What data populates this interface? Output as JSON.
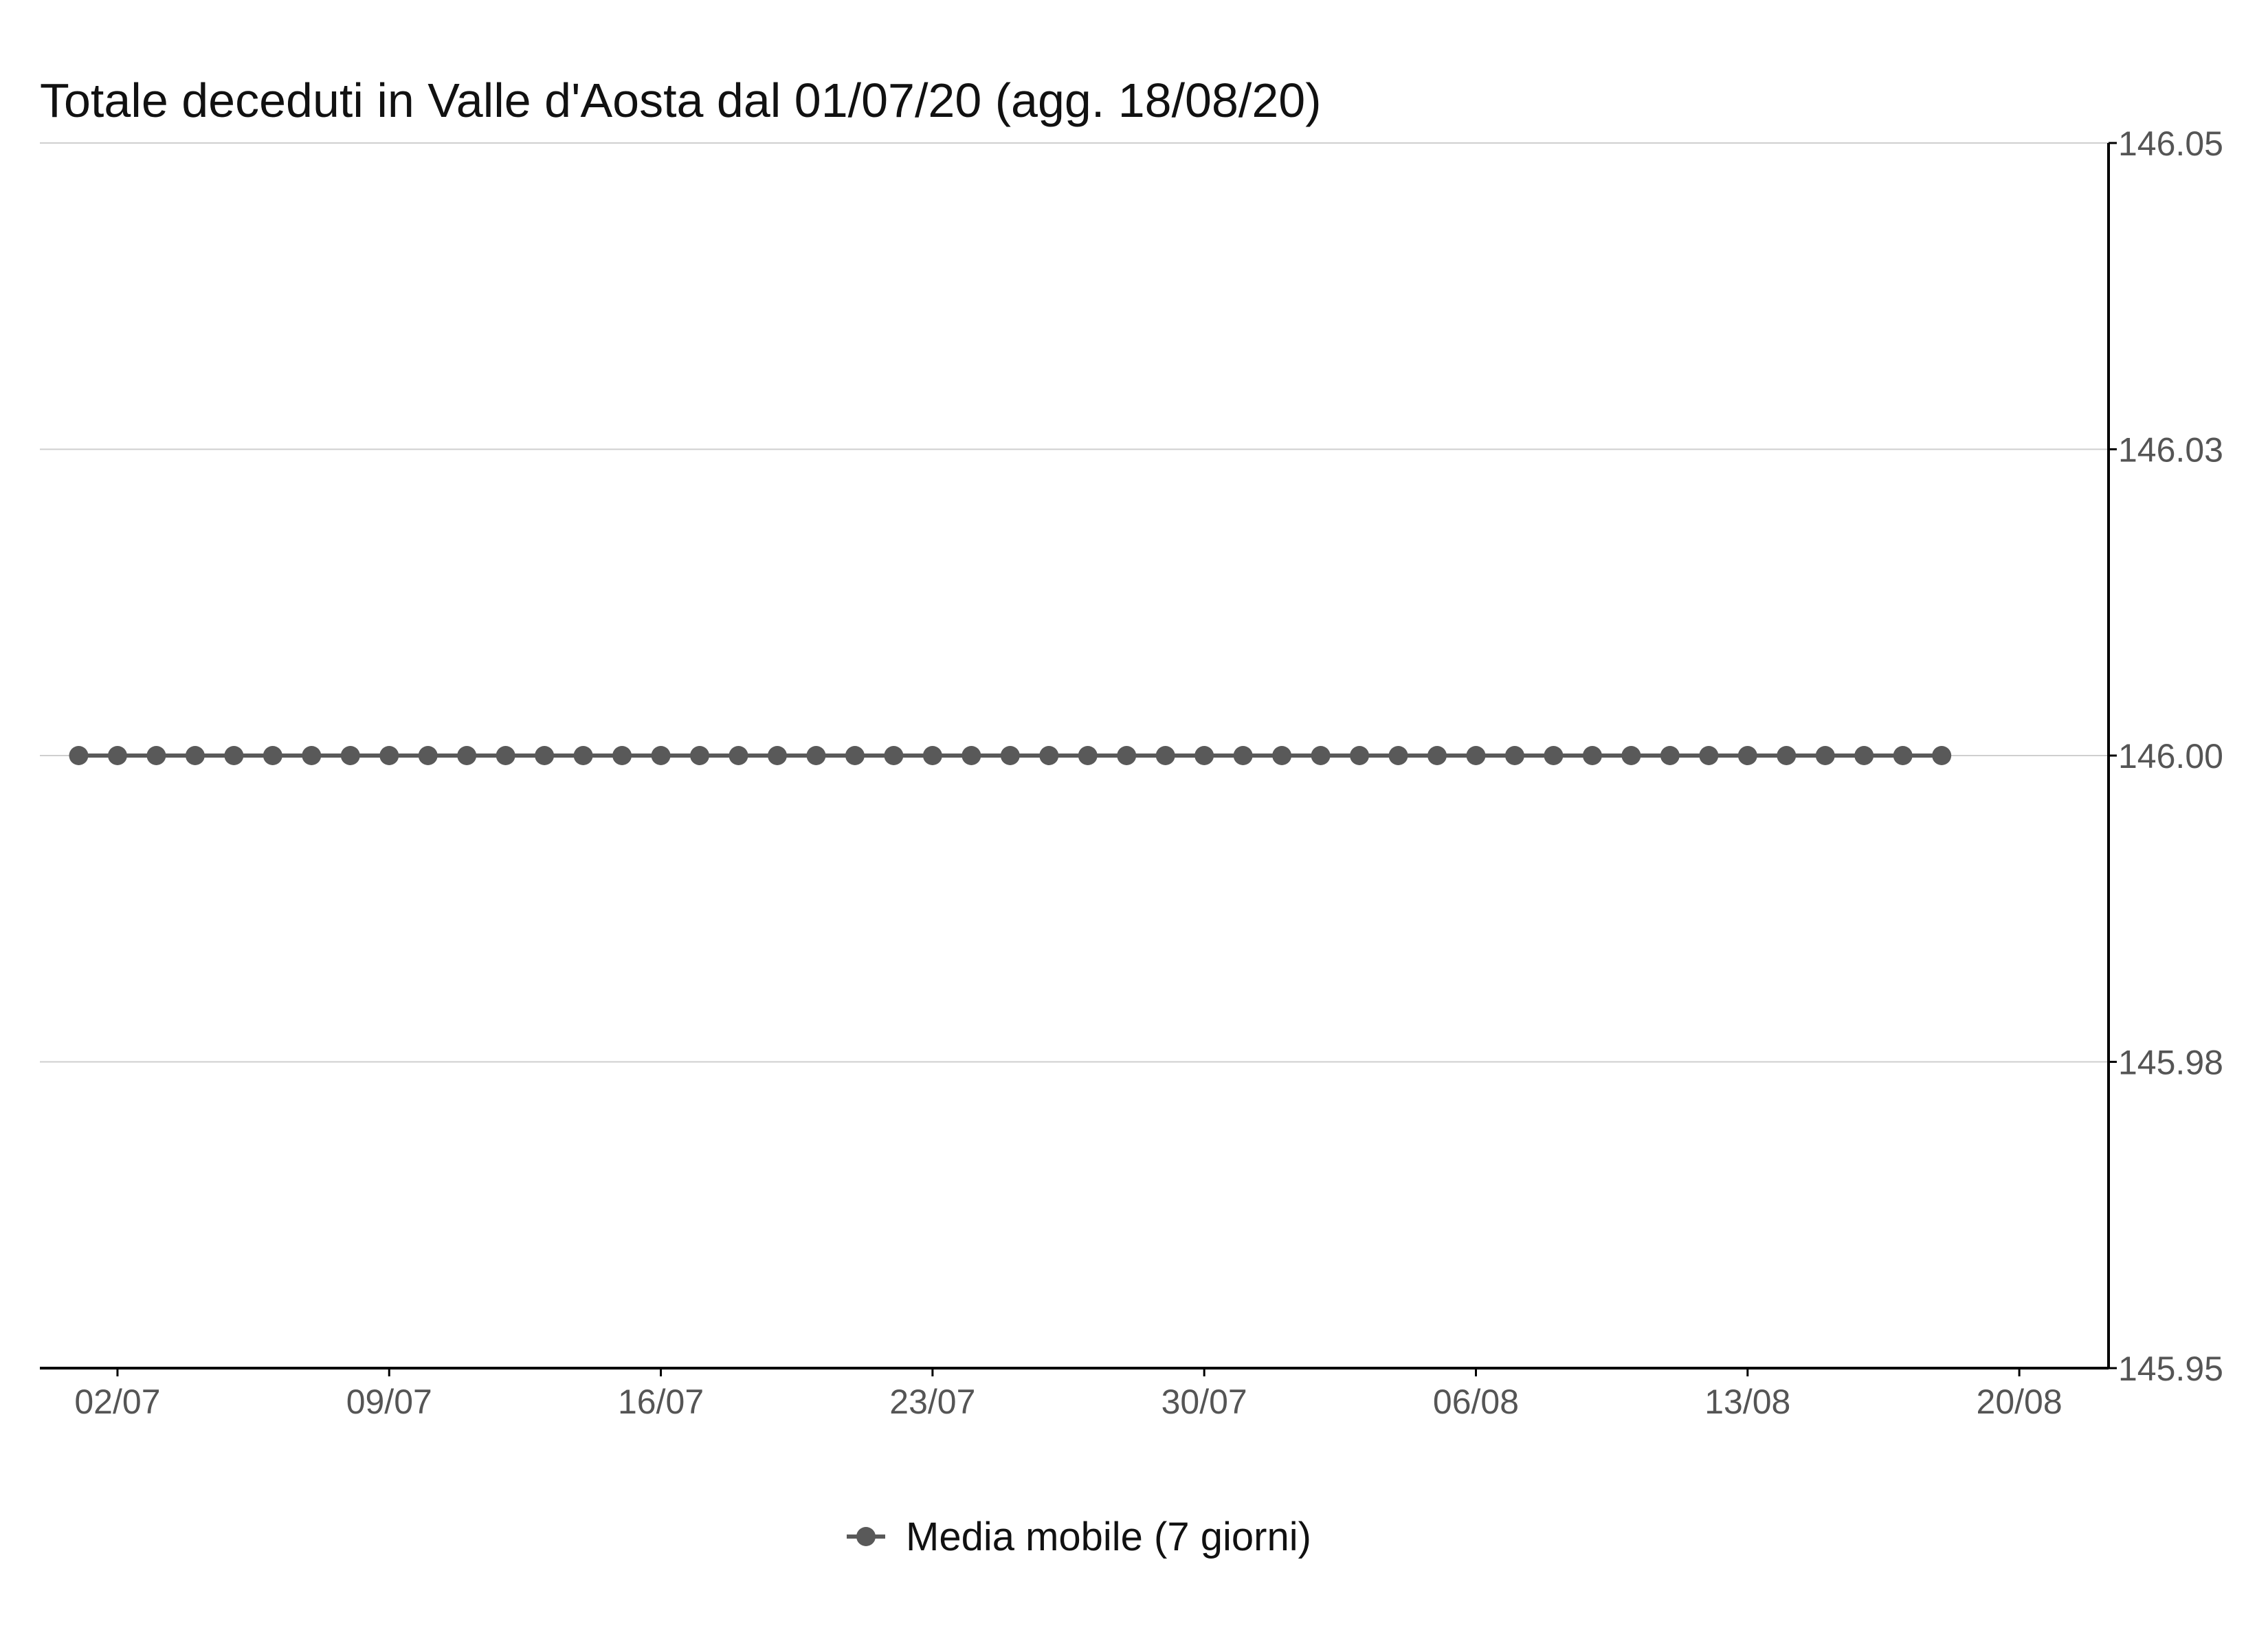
{
  "chart_data": {
    "type": "line",
    "title": "Totale deceduti in Valle d'Aosta dal 01/07/20 (agg. 18/08/20)",
    "xlabel": "",
    "ylabel": "",
    "y_axis_position": "right",
    "grid": true,
    "legend_position": "bottom",
    "ylim": [
      145.95,
      146.05
    ],
    "y_ticks": [
      {
        "value": 145.95,
        "label": "145.95"
      },
      {
        "value": 145.975,
        "label": "145.98"
      },
      {
        "value": 146.0,
        "label": "146.00"
      },
      {
        "value": 146.025,
        "label": "146.03"
      },
      {
        "value": 146.05,
        "label": "146.05"
      }
    ],
    "x_range_days": [
      -1.0,
      52.3
    ],
    "x_ticks": [
      {
        "day": 1,
        "label": "02/07"
      },
      {
        "day": 8,
        "label": "09/07"
      },
      {
        "day": 15,
        "label": "16/07"
      },
      {
        "day": 22,
        "label": "23/07"
      },
      {
        "day": 29,
        "label": "30/07"
      },
      {
        "day": 36,
        "label": "06/08"
      },
      {
        "day": 43,
        "label": "13/08"
      },
      {
        "day": 50,
        "label": "20/08"
      }
    ],
    "series": [
      {
        "name": "Media mobile (7 giorni)",
        "color": "#595959",
        "start_date": "01/07",
        "x": [
          0,
          1,
          2,
          3,
          4,
          5,
          6,
          7,
          8,
          9,
          10,
          11,
          12,
          13,
          14,
          15,
          16,
          17,
          18,
          19,
          20,
          21,
          22,
          23,
          24,
          25,
          26,
          27,
          28,
          29,
          30,
          31,
          32,
          33,
          34,
          35,
          36,
          37,
          38,
          39,
          40,
          41,
          42,
          43,
          44,
          45,
          46,
          47,
          48
        ],
        "values": [
          146,
          146,
          146,
          146,
          146,
          146,
          146,
          146,
          146,
          146,
          146,
          146,
          146,
          146,
          146,
          146,
          146,
          146,
          146,
          146,
          146,
          146,
          146,
          146,
          146,
          146,
          146,
          146,
          146,
          146,
          146,
          146,
          146,
          146,
          146,
          146,
          146,
          146,
          146,
          146,
          146,
          146,
          146,
          146,
          146,
          146,
          146,
          146,
          146
        ]
      }
    ]
  }
}
